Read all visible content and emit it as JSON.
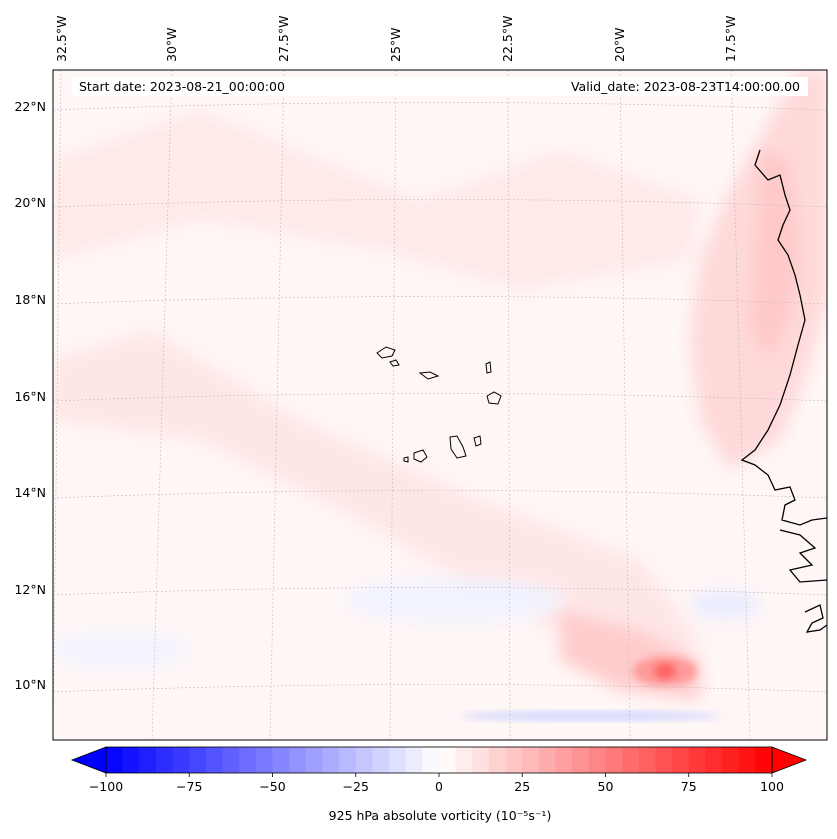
{
  "map": {
    "start_date_text": "Start date: 2023-08-21_00:00:00",
    "valid_date_text": "Valid_date: 2023-08-23T14:00:00.00",
    "lon_labels": [
      "32.5°W",
      "30°W",
      "27.5°W",
      "25°W",
      "22.5°W",
      "20°W",
      "17.5°W"
    ],
    "lat_labels": [
      "22°N",
      "20°N",
      "18°N",
      "16°N",
      "14°N",
      "12°N",
      "10°N"
    ],
    "islands": [
      "Santo Antão",
      "São Vicente",
      "São Nicolau",
      "Sal",
      "Boa Vista",
      "Maio",
      "Santiago",
      "Fogo",
      "Brava"
    ]
  },
  "colorbar": {
    "ticks": [
      "−100",
      "−75",
      "−50",
      "−25",
      "0",
      "25",
      "50",
      "75",
      "100"
    ],
    "tick_values": [
      -100,
      -75,
      -50,
      -25,
      0,
      25,
      50,
      75,
      100
    ],
    "vmin": -100,
    "vmax": 100,
    "levels": 41,
    "label": "925 hPa absolute vorticity (10⁻⁵s⁻¹)",
    "colormap": "bwr",
    "low_color": "#0000ff",
    "mid_color": "#ffffff",
    "high_color": "#ff0000"
  }
}
